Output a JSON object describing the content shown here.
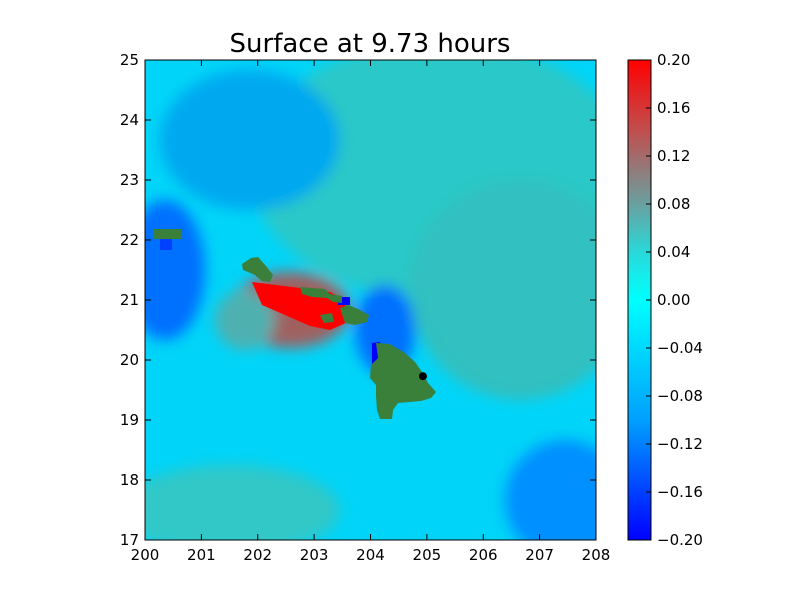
{
  "chart_data": {
    "type": "heatmap",
    "title": "Surface at 9.73 hours",
    "xlabel": "",
    "ylabel": "",
    "xlim": [
      200,
      208
    ],
    "ylim": [
      17,
      25
    ],
    "x_ticks": [
      200,
      201,
      202,
      203,
      204,
      205,
      206,
      207,
      208
    ],
    "y_ticks": [
      17,
      18,
      19,
      20,
      21,
      22,
      23,
      24,
      25
    ],
    "colorbar": {
      "range": [
        -0.2,
        0.2
      ],
      "ticks": [
        "0.20",
        "0.16",
        "0.12",
        "0.08",
        "0.04",
        "0.00",
        "−0.04",
        "−0.08",
        "−0.12",
        "−0.16",
        "−0.20"
      ],
      "tick_values": [
        0.2,
        0.16,
        0.12,
        0.08,
        0.04,
        0.0,
        -0.04,
        -0.08,
        -0.12,
        -0.16,
        -0.2
      ],
      "colors": [
        {
          "v": -0.2,
          "c": "#0000ff"
        },
        {
          "v": -0.1,
          "c": "#00a0ff"
        },
        {
          "v": 0.0,
          "c": "#00ffff"
        },
        {
          "v": 0.04,
          "c": "#2ad8d8"
        },
        {
          "v": 0.08,
          "c": "#6aa0a0"
        },
        {
          "v": 0.14,
          "c": "#c05050"
        },
        {
          "v": 0.2,
          "c": "#ff0000"
        }
      ]
    },
    "land_color": "#3a7f3a",
    "marker": {
      "x": 204.93,
      "y": 19.73,
      "color": "#000000"
    },
    "grid": false
  }
}
